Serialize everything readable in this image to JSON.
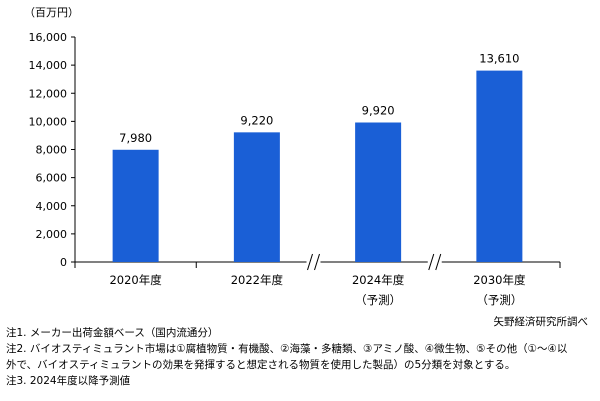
{
  "chart_data": {
    "type": "bar",
    "unit_label": "（百万円）",
    "categories": [
      "2020年度",
      "2022年度",
      "2024年度",
      "2030年度"
    ],
    "category_sublabels": [
      "",
      "",
      "（予測）",
      "（予測）"
    ],
    "values": [
      7980,
      9220,
      9920,
      13610
    ],
    "value_labels": [
      "7,980",
      "9,220",
      "9,920",
      "13,610"
    ],
    "ylim": [
      0,
      16000
    ],
    "yticks": [
      0,
      2000,
      4000,
      6000,
      8000,
      10000,
      12000,
      14000,
      16000
    ],
    "ytick_labels": [
      "0",
      "2,000",
      "4,000",
      "6,000",
      "8,000",
      "10,000",
      "12,000",
      "14,000",
      "16,000"
    ],
    "axis_breaks_after_category_index": [
      1,
      2
    ],
    "grid": false,
    "bar_color": "#1a5fd6",
    "title": "",
    "xlabel": "",
    "ylabel": "（百万円）"
  },
  "source": "矢野経済研究所調べ",
  "notes": [
    "注1. メーカー出荷金額ベース（国内流通分）",
    "注2. バイオスティミュラント市場は①腐植物質・有機酸、②海藻・多糖類、③アミノ酸、④微生物、⑤その他（①～④以",
    "外で、バイオスティミュラントの効果を発揮すると想定される物質を使用した製品）の5分類を対象とする。",
    "注3. 2024年度以降予測値"
  ]
}
